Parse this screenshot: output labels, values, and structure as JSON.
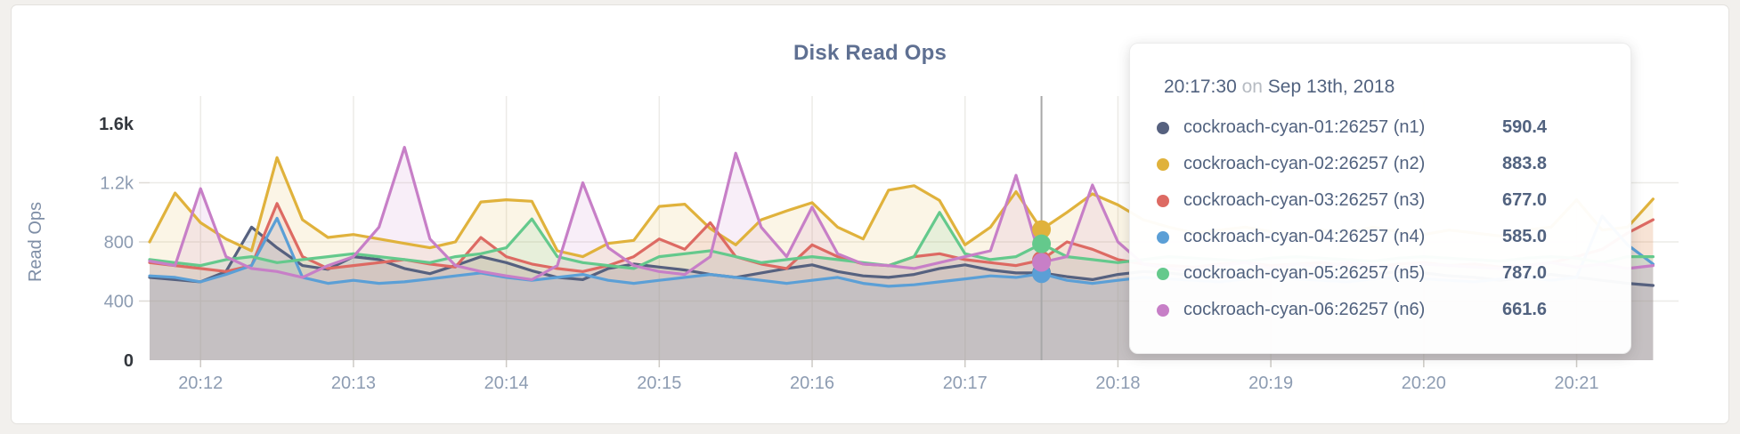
{
  "page": {
    "background": "#f2f0ed"
  },
  "header": {
    "title": "Disk Read Ops"
  },
  "tooltip": {
    "time": "20:17:30",
    "conjunction": "on",
    "date": "Sep 13th, 2018",
    "rows": [
      {
        "label": "cockroach-cyan-01:26257 (n1)",
        "value": "590.4"
      },
      {
        "label": "cockroach-cyan-02:26257 (n2)",
        "value": "883.8"
      },
      {
        "label": "cockroach-cyan-03:26257 (n3)",
        "value": "677.0"
      },
      {
        "label": "cockroach-cyan-04:26257 (n4)",
        "value": "585.0"
      },
      {
        "label": "cockroach-cyan-05:26257 (n5)",
        "value": "787.0"
      },
      {
        "label": "cockroach-cyan-06:26257 (n6)",
        "value": "661.6"
      }
    ]
  },
  "chart_data": {
    "type": "area",
    "title": "Disk Read Ops",
    "ylabel": "Read Ops",
    "ylim": [
      0,
      1600
    ],
    "grid": true,
    "x_start_time": "20:11:40",
    "x_step_seconds": 10,
    "x_ticks": [
      {
        "label": "20:12",
        "t": 20
      },
      {
        "label": "20:13",
        "t": 80
      },
      {
        "label": "20:14",
        "t": 140
      },
      {
        "label": "20:15",
        "t": 200
      },
      {
        "label": "20:16",
        "t": 260
      },
      {
        "label": "20:17",
        "t": 320
      },
      {
        "label": "20:18",
        "t": 380
      },
      {
        "label": "20:19",
        "t": 440
      },
      {
        "label": "20:20",
        "t": 500
      },
      {
        "label": "20:21",
        "t": 560
      }
    ],
    "y_ticks": [
      {
        "label": "1.6k",
        "value": 1600,
        "emphasis": true,
        "gridline": false
      },
      {
        "label": "1.2k",
        "value": 1200,
        "emphasis": false,
        "gridline": true
      },
      {
        "label": "800",
        "value": 800,
        "emphasis": false,
        "gridline": true
      },
      {
        "label": "400",
        "value": 400,
        "emphasis": false,
        "gridline": true
      },
      {
        "label": "0",
        "value": 0,
        "emphasis": true,
        "gridline": false
      }
    ],
    "hover": {
      "time": "20:17:30",
      "t_seconds": 350,
      "index": 35
    },
    "colors": {
      "grid": "#ecebe7",
      "hover_line": "#a8a8a8",
      "axis_text": "#8d9cb2",
      "axis_text_dark": "#33373d",
      "axis_label": "#7e8ea6",
      "title": "#5f7092",
      "tick": "#cdcac5"
    },
    "series": [
      {
        "name": "cockroach-cyan-01:26257 (n1)",
        "color": "#56617f",
        "values": [
          560,
          545,
          530,
          600,
          900,
          760,
          640,
          615,
          700,
          680,
          620,
          585,
          640,
          700,
          660,
          605,
          560,
          545,
          620,
          650,
          630,
          610,
          580,
          560,
          590,
          620,
          645,
          600,
          570,
          560,
          580,
          620,
          645,
          610,
          590,
          590.4,
          565,
          545,
          580,
          600,
          590,
          570,
          560,
          580,
          600,
          590,
          570,
          560,
          580,
          600,
          590,
          570,
          560,
          540,
          560,
          580,
          560,
          540,
          520,
          505
        ]
      },
      {
        "name": "cockroach-cyan-02:26257 (n2)",
        "color": "#e0b23c",
        "values": [
          800,
          1130,
          930,
          820,
          740,
          1370,
          950,
          830,
          850,
          820,
          790,
          760,
          800,
          1070,
          1085,
          1075,
          740,
          700,
          790,
          810,
          1040,
          1055,
          890,
          780,
          950,
          1010,
          1065,
          900,
          820,
          1150,
          1180,
          1080,
          780,
          900,
          1140,
          883.8,
          1000,
          1125,
          1050,
          950,
          900,
          860,
          880,
          900,
          870,
          850,
          880,
          860,
          900,
          870,
          850,
          880,
          860,
          840,
          880,
          900,
          1085,
          880,
          900,
          1090
        ]
      },
      {
        "name": "cockroach-cyan-03:26257 (n3)",
        "color": "#dd6a63",
        "values": [
          660,
          640,
          620,
          600,
          640,
          1060,
          700,
          620,
          640,
          660,
          680,
          650,
          630,
          830,
          700,
          650,
          620,
          600,
          640,
          700,
          820,
          750,
          930,
          700,
          650,
          620,
          780,
          700,
          650,
          640,
          700,
          720,
          680,
          660,
          640,
          677,
          800,
          750,
          680,
          650,
          640,
          630,
          650,
          660,
          640,
          650,
          660,
          640,
          630,
          650,
          660,
          640,
          650,
          630,
          640,
          660,
          700,
          750,
          860,
          950
        ]
      },
      {
        "name": "cockroach-cyan-04:26257 (n4)",
        "color": "#5b9fd6",
        "values": [
          570,
          560,
          530,
          580,
          640,
          960,
          560,
          520,
          540,
          520,
          530,
          550,
          570,
          590,
          560,
          540,
          560,
          580,
          540,
          520,
          540,
          560,
          580,
          560,
          540,
          520,
          540,
          560,
          520,
          500,
          510,
          530,
          550,
          570,
          560,
          585,
          540,
          520,
          540,
          560,
          550,
          540,
          530,
          550,
          560,
          550,
          540,
          530,
          550,
          560,
          550,
          540,
          530,
          550,
          560,
          540,
          560,
          975,
          780,
          650
        ]
      },
      {
        "name": "cockroach-cyan-05:26257 (n5)",
        "color": "#64c98c",
        "values": [
          680,
          660,
          640,
          680,
          700,
          660,
          680,
          700,
          720,
          700,
          680,
          660,
          700,
          720,
          760,
          955,
          700,
          660,
          640,
          620,
          700,
          720,
          740,
          700,
          660,
          680,
          700,
          680,
          660,
          640,
          700,
          1000,
          720,
          680,
          700,
          787,
          700,
          680,
          660,
          680,
          700,
          690,
          680,
          670,
          690,
          700,
          690,
          680,
          670,
          690,
          700,
          690,
          680,
          670,
          690,
          700,
          690,
          660,
          700,
          700
        ]
      },
      {
        "name": "cockroach-cyan-06:26257 (n6)",
        "color": "#c77fc7",
        "values": [
          670,
          640,
          1160,
          700,
          620,
          600,
          560,
          640,
          700,
          900,
          1440,
          820,
          640,
          600,
          570,
          545,
          640,
          1200,
          760,
          640,
          600,
          580,
          700,
          1400,
          900,
          700,
          1035,
          720,
          650,
          640,
          620,
          660,
          700,
          740,
          1250,
          661.6,
          700,
          1185,
          800,
          650,
          620,
          600,
          640,
          660,
          620,
          650,
          630,
          660,
          640,
          620,
          650,
          640,
          630,
          620,
          640,
          660,
          630,
          650,
          620,
          640
        ]
      }
    ]
  }
}
